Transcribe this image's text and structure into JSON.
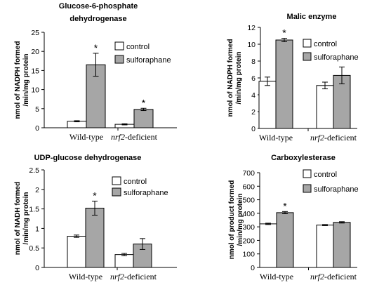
{
  "chart_data": [
    {
      "type": "bar",
      "title_lines": [
        "Glucose-6-phosphate",
        "dehydrogenase"
      ],
      "ylabel_lines": [
        "nmol of NADPH formed",
        "/min/mg protein"
      ],
      "categories": [
        "Wild-type",
        "nrf2-deficient"
      ],
      "category_italic_prefix": [
        "",
        "nrf2"
      ],
      "category_suffix": [
        "",
        "-deficient"
      ],
      "series": [
        {
          "name": "control",
          "values": [
            1.7,
            0.9
          ],
          "errors": [
            0.15,
            0.15
          ]
        },
        {
          "name": "sulforaphane",
          "values": [
            16.5,
            4.8
          ],
          "errors": [
            3.0,
            0.3
          ]
        }
      ],
      "significant": [
        [
          false,
          false
        ],
        [
          true,
          true
        ]
      ],
      "star_symbol": "*",
      "ylim": [
        0,
        25
      ],
      "yticks": [
        "0",
        "5",
        "10",
        "15",
        "20",
        "25"
      ],
      "legend": "top-right"
    },
    {
      "type": "bar",
      "title_lines": [
        "Malic enzyme"
      ],
      "ylabel_lines": [
        "nmol of NADPH formed",
        "/min/mg protein"
      ],
      "categories": [
        "Wild-type",
        "nrf2-deficient"
      ],
      "category_italic_prefix": [
        "",
        "nrf2"
      ],
      "category_suffix": [
        "",
        "-deficient"
      ],
      "series": [
        {
          "name": "control",
          "values": [
            5.6,
            5.1
          ],
          "errors": [
            0.5,
            0.4
          ]
        },
        {
          "name": "sulforaphane",
          "values": [
            10.5,
            6.3
          ],
          "errors": [
            0.2,
            1.0
          ]
        }
      ],
      "significant": [
        [
          false,
          false
        ],
        [
          true,
          false
        ]
      ],
      "star_symbol": "*",
      "ylim": [
        0,
        12
      ],
      "yticks": [
        "0",
        "2",
        "4",
        "6",
        "8",
        "10",
        "12"
      ],
      "legend": "top-right"
    },
    {
      "type": "bar",
      "title_lines": [
        "UDP-glucose dehydrogenase"
      ],
      "ylabel_lines": [
        "nmol of NADH formed",
        "/min/mg protein"
      ],
      "categories": [
        "Wild-type",
        "nrf2-deficient"
      ],
      "category_italic_prefix": [
        "",
        "nrf2"
      ],
      "category_suffix": [
        "",
        "-deficient"
      ],
      "series": [
        {
          "name": "control",
          "values": [
            0.8,
            0.33
          ],
          "errors": [
            0.03,
            0.03
          ]
        },
        {
          "name": "sulforaphane",
          "values": [
            1.52,
            0.6
          ],
          "errors": [
            0.18,
            0.14
          ]
        }
      ],
      "significant": [
        [
          false,
          false
        ],
        [
          true,
          false
        ]
      ],
      "star_symbol": "*",
      "ylim": [
        0,
        2.5
      ],
      "yticks": [
        "0",
        "0.5",
        "1",
        "1.5",
        "2",
        "2.5"
      ],
      "legend": "top-right"
    },
    {
      "type": "bar",
      "title_lines": [
        "Carboxylesterase"
      ],
      "ylabel_lines": [
        "nmol of product formed",
        "/min/mg protein"
      ],
      "categories": [
        "Wild-type",
        "nrf2-deficient"
      ],
      "category_italic_prefix": [
        "",
        "nrf2"
      ],
      "category_suffix": [
        "",
        "-deficient"
      ],
      "series": [
        {
          "name": "control",
          "values": [
            322,
            313
          ],
          "errors": [
            5,
            4
          ]
        },
        {
          "name": "sulforaphane",
          "values": [
            405,
            333
          ],
          "errors": [
            8,
            5
          ]
        }
      ],
      "significant": [
        [
          false,
          false
        ],
        [
          true,
          false
        ]
      ],
      "star_symbol": "*",
      "ylim": [
        0,
        700
      ],
      "yticks": [
        "0",
        "100",
        "200",
        "300",
        "400",
        "500",
        "600",
        "700"
      ],
      "legend": "top-right"
    }
  ],
  "colors": {
    "control_fill": "#ffffff",
    "treatment_fill": "#a6a6a6",
    "stroke": "#000000"
  }
}
